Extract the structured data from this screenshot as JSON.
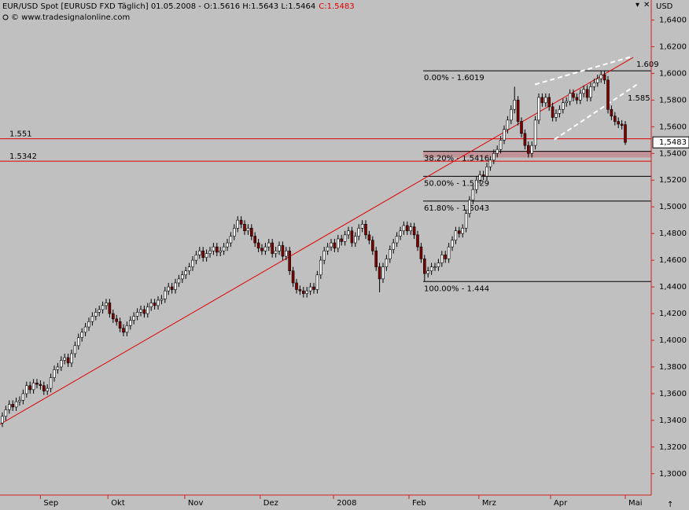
{
  "chart_data": {
    "type": "candlestick",
    "title": "EUR/USD Spot [EURUSD FXD  Täglich] 01.05.2008 - O:1.5616 H:1.5643 L:1.5464",
    "close_label": "C:1.5483",
    "source": "© www.tradesignalonline.com",
    "axis_label": "USD",
    "last_price_label": "1,5483",
    "up_color": "#ffffff",
    "down_color": "#800000",
    "ylim": [
      1.284,
      1.655
    ],
    "yticks": [
      {
        "value": 1.3,
        "label": "1,3000"
      },
      {
        "value": 1.32,
        "label": "1,3200"
      },
      {
        "value": 1.34,
        "label": "1,3400"
      },
      {
        "value": 1.36,
        "label": "1,3600"
      },
      {
        "value": 1.38,
        "label": "1,3800"
      },
      {
        "value": 1.4,
        "label": "1,4000"
      },
      {
        "value": 1.42,
        "label": "1,4200"
      },
      {
        "value": 1.44,
        "label": "1,4400"
      },
      {
        "value": 1.46,
        "label": "1,4600"
      },
      {
        "value": 1.48,
        "label": "1,4800"
      },
      {
        "value": 1.5,
        "label": "1,5000"
      },
      {
        "value": 1.52,
        "label": "1,5200"
      },
      {
        "value": 1.54,
        "label": "1,5400"
      },
      {
        "value": 1.56,
        "label": "1,5600"
      },
      {
        "value": 1.58,
        "label": "1,5800"
      },
      {
        "value": 1.6,
        "label": "1,6000"
      },
      {
        "value": 1.62,
        "label": "1,6200"
      },
      {
        "value": 1.64,
        "label": "1,6400"
      }
    ],
    "xticks": [
      {
        "value": 11,
        "label": "Sep"
      },
      {
        "value": 30.5,
        "label": "Okt"
      },
      {
        "value": 52.7,
        "label": "Nov"
      },
      {
        "value": 74.5,
        "label": "Dez"
      },
      {
        "value": 95.7,
        "label": "2008"
      },
      {
        "value": 117.5,
        "label": "Feb"
      },
      {
        "value": 137.7,
        "label": "Mrz"
      },
      {
        "value": 158.4,
        "label": "Apr"
      },
      {
        "value": 180,
        "label": "Mai"
      }
    ],
    "open": [
      1.338,
      1.343,
      1.348,
      1.352,
      1.35,
      1.354,
      1.355,
      1.36,
      1.366,
      1.363,
      1.368,
      1.367,
      1.366,
      1.362,
      1.364,
      1.372,
      1.378,
      1.38,
      1.385,
      1.387,
      1.383,
      1.39,
      1.396,
      1.402,
      1.406,
      1.41,
      1.414,
      1.418,
      1.421,
      1.423,
      1.426,
      1.428,
      1.42,
      1.416,
      1.414,
      1.409,
      1.406,
      1.411,
      1.415,
      1.418,
      1.421,
      1.423,
      1.42,
      1.425,
      1.428,
      1.426,
      1.43,
      1.431,
      1.437,
      1.44,
      1.438,
      1.443,
      1.446,
      1.449,
      1.452,
      1.455,
      1.46,
      1.464,
      1.467,
      1.462,
      1.465,
      1.467,
      1.47,
      1.466,
      1.467,
      1.47,
      1.473,
      1.478,
      1.484,
      1.49,
      1.487,
      1.482,
      1.484,
      1.478,
      1.473,
      1.469,
      1.467,
      1.47,
      1.473,
      1.465,
      1.467,
      1.471,
      1.463,
      1.467,
      1.452,
      1.443,
      1.438,
      1.437,
      1.435,
      1.437,
      1.44,
      1.438,
      1.449,
      1.46,
      1.467,
      1.47,
      1.473,
      1.469,
      1.476,
      1.474,
      1.479,
      1.482,
      1.473,
      1.478,
      1.484,
      1.487,
      1.479,
      1.475,
      1.467,
      1.455,
      1.446,
      1.455,
      1.461,
      1.468,
      1.473,
      1.478,
      1.482,
      1.486,
      1.482,
      1.485,
      1.479,
      1.47,
      1.461,
      1.45,
      1.452,
      1.455,
      1.455,
      1.458,
      1.464,
      1.461,
      1.47,
      1.475,
      1.482,
      1.48,
      1.484,
      1.495,
      1.505,
      1.513,
      1.52,
      1.524,
      1.523,
      1.53,
      1.535,
      1.54,
      1.543,
      1.55,
      1.558,
      1.565,
      1.573,
      1.58,
      1.564,
      1.555,
      1.546,
      1.54,
      1.546,
      1.565,
      1.582,
      1.578,
      1.582,
      1.575,
      1.567,
      1.57,
      1.573,
      1.578,
      1.579,
      1.585,
      1.582,
      1.58,
      1.585,
      1.588,
      1.582,
      1.59,
      1.593,
      1.596,
      1.599,
      1.595,
      1.573,
      1.568,
      1.564,
      1.562,
      1.5616
    ],
    "high": [
      1.346,
      1.351,
      1.355,
      1.355,
      1.357,
      1.358,
      1.363,
      1.369,
      1.369,
      1.371,
      1.371,
      1.37,
      1.369,
      1.367,
      1.375,
      1.381,
      1.383,
      1.388,
      1.39,
      1.39,
      1.393,
      1.399,
      1.405,
      1.409,
      1.413,
      1.417,
      1.421,
      1.424,
      1.426,
      1.429,
      1.431,
      1.431,
      1.423,
      1.419,
      1.417,
      1.412,
      1.414,
      1.418,
      1.421,
      1.424,
      1.426,
      1.426,
      1.428,
      1.431,
      1.431,
      1.433,
      1.434,
      1.44,
      1.443,
      1.443,
      1.446,
      1.449,
      1.452,
      1.455,
      1.458,
      1.463,
      1.467,
      1.47,
      1.47,
      1.468,
      1.47,
      1.473,
      1.473,
      1.47,
      1.473,
      1.476,
      1.481,
      1.487,
      1.493,
      1.493,
      1.49,
      1.487,
      1.487,
      1.481,
      1.476,
      1.472,
      1.473,
      1.476,
      1.476,
      1.47,
      1.474,
      1.474,
      1.47,
      1.47,
      1.455,
      1.446,
      1.441,
      1.44,
      1.44,
      1.443,
      1.443,
      1.452,
      1.463,
      1.47,
      1.473,
      1.476,
      1.476,
      1.479,
      1.479,
      1.482,
      1.485,
      1.485,
      1.481,
      1.487,
      1.49,
      1.49,
      1.482,
      1.478,
      1.47,
      1.458,
      1.458,
      1.464,
      1.471,
      1.476,
      1.481,
      1.485,
      1.489,
      1.489,
      1.488,
      1.488,
      1.482,
      1.473,
      1.464,
      1.455,
      1.458,
      1.458,
      1.461,
      1.467,
      1.467,
      1.473,
      1.478,
      1.485,
      1.485,
      1.487,
      1.498,
      1.508,
      1.516,
      1.523,
      1.527,
      1.527,
      1.533,
      1.538,
      1.543,
      1.546,
      1.553,
      1.561,
      1.568,
      1.576,
      1.59,
      1.583,
      1.567,
      1.558,
      1.549,
      1.549,
      1.568,
      1.585,
      1.585,
      1.585,
      1.585,
      1.578,
      1.573,
      1.576,
      1.581,
      1.582,
      1.588,
      1.588,
      1.585,
      1.588,
      1.591,
      1.591,
      1.593,
      1.596,
      1.599,
      1.6019,
      1.602,
      1.598,
      1.576,
      1.571,
      1.567,
      1.565,
      1.5643
    ],
    "low": [
      1.335,
      1.34,
      1.345,
      1.347,
      1.347,
      1.351,
      1.352,
      1.357,
      1.36,
      1.36,
      1.364,
      1.363,
      1.359,
      1.359,
      1.361,
      1.369,
      1.375,
      1.377,
      1.382,
      1.38,
      1.38,
      1.387,
      1.393,
      1.399,
      1.403,
      1.407,
      1.411,
      1.415,
      1.418,
      1.42,
      1.423,
      1.417,
      1.413,
      1.411,
      1.406,
      1.403,
      1.403,
      1.408,
      1.412,
      1.415,
      1.418,
      1.417,
      1.417,
      1.422,
      1.423,
      1.423,
      1.427,
      1.428,
      1.434,
      1.435,
      1.435,
      1.44,
      1.443,
      1.446,
      1.449,
      1.452,
      1.457,
      1.461,
      1.459,
      1.459,
      1.462,
      1.464,
      1.463,
      1.463,
      1.464,
      1.467,
      1.47,
      1.475,
      1.481,
      1.484,
      1.479,
      1.479,
      1.475,
      1.47,
      1.466,
      1.464,
      1.464,
      1.467,
      1.462,
      1.462,
      1.464,
      1.46,
      1.46,
      1.449,
      1.44,
      1.435,
      1.434,
      1.432,
      1.432,
      1.434,
      1.435,
      1.435,
      1.446,
      1.457,
      1.464,
      1.467,
      1.466,
      1.466,
      1.471,
      1.471,
      1.476,
      1.47,
      1.47,
      1.475,
      1.481,
      1.476,
      1.472,
      1.464,
      1.452,
      1.436,
      1.443,
      1.452,
      1.458,
      1.465,
      1.47,
      1.475,
      1.479,
      1.479,
      1.479,
      1.476,
      1.467,
      1.458,
      1.444,
      1.447,
      1.449,
      1.452,
      1.452,
      1.455,
      1.458,
      1.458,
      1.467,
      1.472,
      1.477,
      1.477,
      1.481,
      1.492,
      1.502,
      1.51,
      1.517,
      1.52,
      1.52,
      1.527,
      1.532,
      1.537,
      1.54,
      1.547,
      1.555,
      1.562,
      1.57,
      1.561,
      1.552,
      1.543,
      1.537,
      1.537,
      1.543,
      1.562,
      1.575,
      1.575,
      1.572,
      1.564,
      1.564,
      1.567,
      1.57,
      1.575,
      1.576,
      1.579,
      1.577,
      1.577,
      1.582,
      1.579,
      1.579,
      1.587,
      1.59,
      1.593,
      1.592,
      1.57,
      1.565,
      1.561,
      1.559,
      1.558,
      1.5464
    ],
    "close": [
      1.343,
      1.348,
      1.352,
      1.35,
      1.354,
      1.355,
      1.36,
      1.366,
      1.363,
      1.368,
      1.367,
      1.366,
      1.362,
      1.364,
      1.372,
      1.378,
      1.38,
      1.385,
      1.387,
      1.383,
      1.39,
      1.396,
      1.402,
      1.406,
      1.41,
      1.414,
      1.418,
      1.421,
      1.423,
      1.426,
      1.428,
      1.42,
      1.416,
      1.414,
      1.409,
      1.406,
      1.411,
      1.415,
      1.418,
      1.421,
      1.423,
      1.42,
      1.425,
      1.428,
      1.426,
      1.43,
      1.431,
      1.437,
      1.44,
      1.438,
      1.443,
      1.446,
      1.449,
      1.452,
      1.455,
      1.46,
      1.464,
      1.467,
      1.462,
      1.465,
      1.467,
      1.47,
      1.466,
      1.467,
      1.47,
      1.473,
      1.478,
      1.484,
      1.49,
      1.487,
      1.482,
      1.484,
      1.478,
      1.473,
      1.469,
      1.467,
      1.47,
      1.473,
      1.465,
      1.467,
      1.471,
      1.463,
      1.467,
      1.452,
      1.443,
      1.438,
      1.437,
      1.435,
      1.437,
      1.44,
      1.438,
      1.449,
      1.46,
      1.467,
      1.47,
      1.473,
      1.469,
      1.476,
      1.474,
      1.479,
      1.482,
      1.473,
      1.478,
      1.484,
      1.487,
      1.479,
      1.475,
      1.467,
      1.455,
      1.446,
      1.455,
      1.461,
      1.468,
      1.473,
      1.478,
      1.482,
      1.486,
      1.482,
      1.485,
      1.479,
      1.47,
      1.461,
      1.45,
      1.452,
      1.455,
      1.455,
      1.458,
      1.464,
      1.461,
      1.47,
      1.475,
      1.482,
      1.48,
      1.484,
      1.495,
      1.505,
      1.513,
      1.52,
      1.524,
      1.523,
      1.53,
      1.535,
      1.54,
      1.543,
      1.55,
      1.558,
      1.565,
      1.573,
      1.58,
      1.564,
      1.555,
      1.546,
      1.54,
      1.546,
      1.565,
      1.582,
      1.578,
      1.582,
      1.575,
      1.567,
      1.57,
      1.573,
      1.578,
      1.579,
      1.585,
      1.582,
      1.58,
      1.585,
      1.588,
      1.582,
      1.59,
      1.593,
      1.596,
      1.599,
      1.595,
      1.573,
      1.568,
      1.564,
      1.562,
      1.561,
      1.5483
    ],
    "hlines": [
      {
        "value": 1.551,
        "label": "1.551"
      },
      {
        "value": 1.5342,
        "label": "1.5342"
      }
    ],
    "hline_color": "#e00000",
    "fib": [
      {
        "value": 1.6019,
        "label": "0.00% - 1.6019"
      },
      {
        "value": 1.5416,
        "label": "38.20% - 1.5416"
      },
      {
        "value": 1.5229,
        "label": "50.00% - 1.5229"
      },
      {
        "value": 1.5043,
        "label": "61.80% - 1.5043"
      },
      {
        "value": 1.444,
        "label": "100.00% - 1.444"
      }
    ],
    "fib_start": 121.6,
    "fib_zone": [
      1.537,
      1.5416
    ],
    "trendline": {
      "x": [
        -0.7,
        182.3
      ],
      "y": [
        1.337,
        1.612
      ],
      "label": "1.609",
      "color": "#e00000"
    },
    "channel": [
      {
        "x": [
          153.9,
          182.3
        ],
        "y": [
          1.5917,
          1.6129
        ]
      },
      {
        "x": [
          159.5,
          183.4
        ],
        "y": [
          1.5504,
          1.5917
        ]
      }
    ],
    "channel_label": "1.585"
  }
}
